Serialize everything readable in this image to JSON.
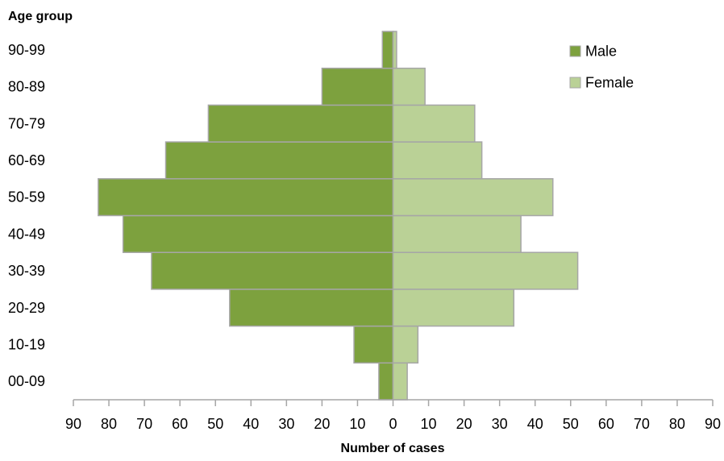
{
  "chart_data": {
    "type": "bar",
    "orientation": "horizontal",
    "layout": "population-pyramid",
    "categories": [
      "00-09",
      "10-19",
      "20-29",
      "30-39",
      "40-49",
      "50-59",
      "60-69",
      "70-79",
      "80-89",
      "90-99"
    ],
    "series": [
      {
        "name": "Male",
        "side": "left",
        "values": [
          4,
          11,
          46,
          68,
          76,
          83,
          64,
          52,
          20,
          3
        ]
      },
      {
        "name": "Female",
        "side": "right",
        "values": [
          4,
          7,
          34,
          52,
          36,
          45,
          25,
          23,
          9,
          1
        ]
      }
    ],
    "xlabel": "Number of cases",
    "ylabel": "Age group",
    "xlim": [
      -90,
      90
    ],
    "x_ticks": [
      -90,
      -80,
      -70,
      -60,
      -50,
      -40,
      -30,
      -20,
      -10,
      0,
      10,
      20,
      30,
      40,
      50,
      60,
      70,
      80,
      90
    ],
    "x_tick_labels": [
      "90",
      "80",
      "70",
      "60",
      "50",
      "40",
      "30",
      "20",
      "10",
      "0",
      "10",
      "20",
      "30",
      "40",
      "50",
      "60",
      "70",
      "80",
      "90"
    ],
    "grid": false,
    "legend": "top-right",
    "colors": {
      "Male": "#7da13e",
      "Female": "#bad196",
      "bar_edge": "#a6a6a6",
      "axis": "#a6a6a6"
    }
  }
}
